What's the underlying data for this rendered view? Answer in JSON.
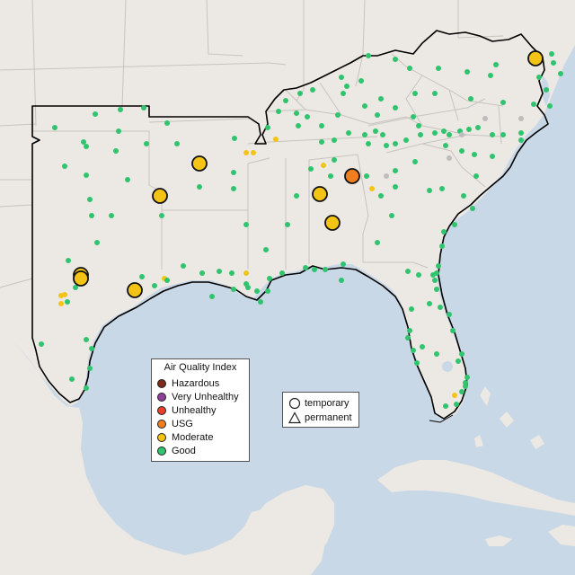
{
  "colors": {
    "water": "#c9d8e6",
    "land": "#ece9e4",
    "border": "#c7c3be",
    "outline": "#000000",
    "hazardous": "#7e2a1a",
    "very_unhealthy": "#8f3f97",
    "unhealthy": "#e8412b",
    "usg": "#f07d1e",
    "moderate": "#f3c416",
    "good": "#2fc46d",
    "nodata": "#bdbdbd"
  },
  "legend": {
    "title": "Air Quality Index",
    "items": [
      {
        "key": "hazardous",
        "label": "Hazardous"
      },
      {
        "key": "very_unhealthy",
        "label": "Very Unhealthy"
      },
      {
        "key": "unhealthy",
        "label": "Unhealthy"
      },
      {
        "key": "usg",
        "label": "USG"
      },
      {
        "key": "moderate",
        "label": "Moderate"
      },
      {
        "key": "good",
        "label": "Good"
      }
    ]
  },
  "shape_legend": {
    "temporary": "temporary",
    "permanent": "permanent"
  }
}
